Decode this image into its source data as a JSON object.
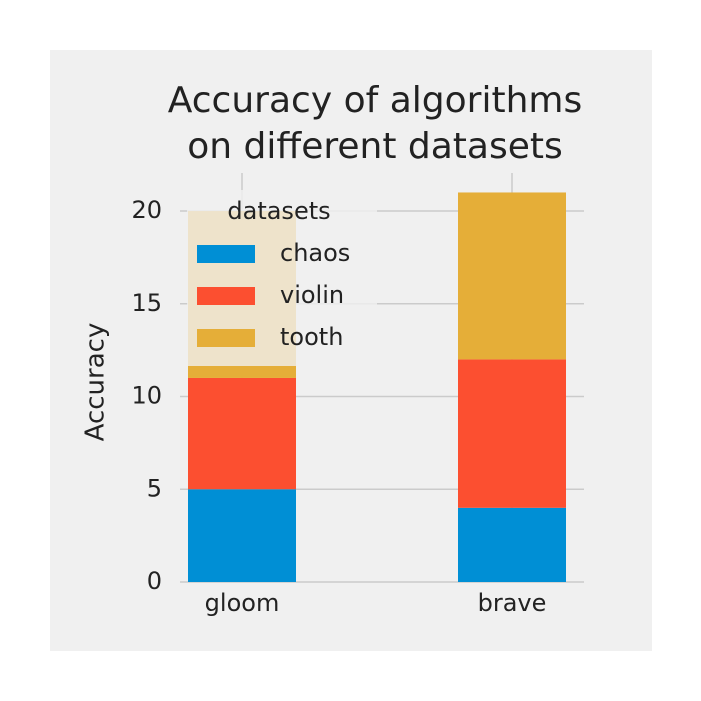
{
  "chart_data": {
    "type": "stacked_bar",
    "title": "Accuracy of algorithms\non different datasets",
    "y_label": "Accuracy",
    "categories": [
      "gloom",
      "brave"
    ],
    "series": [
      {
        "name": "chaos",
        "color": "#008fd5",
        "values": [
          5,
          4
        ]
      },
      {
        "name": "violin",
        "color": "#fc4f30",
        "values": [
          6,
          8
        ]
      },
      {
        "name": "tooth",
        "color": "#e5ae38",
        "values": [
          9,
          9
        ]
      }
    ],
    "legend_title": "datasets",
    "legend_position": "upper left",
    "ylim": [
      0,
      22.05
    ],
    "yticks": [
      0,
      5,
      10,
      15,
      20
    ],
    "grid": true
  }
}
